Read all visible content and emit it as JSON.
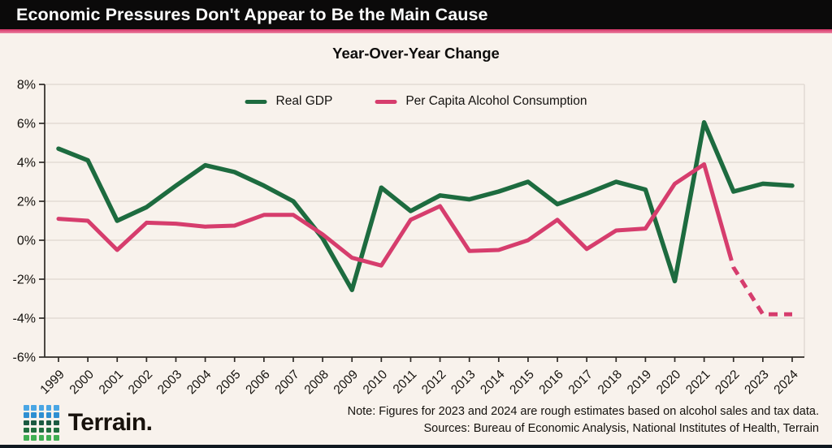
{
  "header": {
    "title": "Economic Pressures Don't Appear to Be the Main Cause"
  },
  "chart_data": {
    "type": "line",
    "title": "Year-Over-Year Change",
    "xlabel": "",
    "ylabel": "",
    "x": [
      1999,
      2000,
      2001,
      2002,
      2003,
      2004,
      2005,
      2006,
      2007,
      2008,
      2009,
      2010,
      2011,
      2012,
      2013,
      2014,
      2015,
      2016,
      2017,
      2018,
      2019,
      2020,
      2021,
      2022,
      2023,
      2024
    ],
    "series": [
      {
        "name": "Real GDP",
        "color": "#1d6b3f",
        "style": "solid",
        "values": [
          4.7,
          4.1,
          1.0,
          1.7,
          2.8,
          3.85,
          3.5,
          2.8,
          2.0,
          0.1,
          -2.55,
          2.7,
          1.5,
          2.3,
          2.1,
          2.5,
          3.0,
          1.85,
          2.4,
          3.0,
          2.6,
          -2.1,
          6.05,
          2.5,
          2.9,
          2.8
        ]
      },
      {
        "name": "Per Capita Alcohol Consumption",
        "color": "#d63d6d",
        "style": "solid-then-dashed",
        "dashed_from_x": 2022,
        "values": [
          1.1,
          1.0,
          -0.5,
          0.9,
          0.85,
          0.7,
          0.75,
          1.3,
          1.3,
          0.3,
          -0.9,
          -1.3,
          1.05,
          1.75,
          -0.55,
          -0.5,
          0.0,
          1.05,
          -0.45,
          0.5,
          0.6,
          2.9,
          3.9,
          -1.4,
          -3.8,
          -3.8
        ]
      }
    ],
    "ylim": [
      -6,
      8
    ],
    "yticks": [
      8,
      6,
      4,
      2,
      0,
      -2,
      -4,
      -6
    ],
    "ytick_suffix": "%",
    "grid": true,
    "legend_position": "top-center",
    "grid_color": "#ded7d0",
    "axis_color": "#2e2a26",
    "text_color": "#15120e"
  },
  "footer": {
    "note": "Note: Figures for 2023 and 2024 are rough estimates based on alcohol sales and tax data.",
    "sources": "Sources: Bureau of Economic Analysis, National Institutes of Health, Terrain",
    "brand": "Terrain.",
    "logo_rows": [
      "#4aa6e4",
      "#2e8fd2",
      "#1b5a41",
      "#20703f",
      "#3fae52"
    ]
  },
  "colors": {
    "page_bg": "#f8f2ec",
    "header_bg": "#0b0a0a",
    "accent_pink": "#d63d6d",
    "bottom_bar": "#101820"
  }
}
